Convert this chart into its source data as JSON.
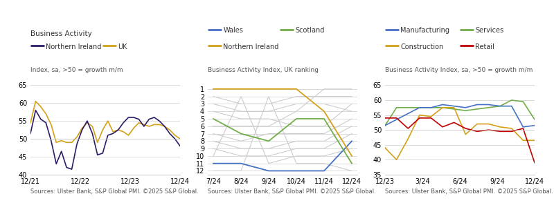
{
  "chart1": {
    "title": "Business Activity",
    "subtitle": "Index, sa, >50 = growth m/m",
    "ylim": [
      40,
      65
    ],
    "yticks": [
      40,
      45,
      50,
      55,
      60,
      65
    ],
    "xtick_labels": [
      "12/21",
      "12/22",
      "12/23",
      "12/24"
    ],
    "ni_color": "#2d1b69",
    "uk_color": "#d4a017",
    "ni_label": "Northern Ireland",
    "uk_label": "UK",
    "ni_data": [
      51.5,
      58.0,
      55.5,
      54.5,
      49.5,
      43.0,
      46.5,
      42.0,
      41.5,
      48.5,
      52.5,
      55.0,
      51.5,
      45.5,
      46.0,
      51.0,
      51.5,
      52.5,
      54.5,
      56.0,
      56.0,
      55.5,
      53.5,
      55.5,
      56.0,
      55.0,
      53.5,
      51.5,
      50.0,
      48.0
    ],
    "uk_data": [
      54.5,
      60.5,
      59.0,
      57.0,
      54.0,
      49.0,
      49.5,
      49.0,
      49.0,
      50.5,
      53.0,
      54.5,
      53.5,
      49.0,
      52.5,
      55.0,
      52.0,
      52.5,
      52.0,
      51.0,
      53.0,
      54.5,
      54.0,
      53.5,
      54.0,
      54.0,
      53.5,
      52.5,
      51.0,
      50.0
    ]
  },
  "chart2": {
    "title": "Business Activity Index, UK ranking",
    "yticks": [
      1,
      2,
      3,
      4,
      5,
      6,
      7,
      8,
      9,
      10,
      11,
      12
    ],
    "xtick_labels": [
      "7/24",
      "8/24",
      "9/24",
      "10/24",
      "11/24",
      "12/24"
    ],
    "wales_color": "#4472c4",
    "scotland_color": "#70ad47",
    "ni_color": "#d4a017",
    "wales_label": "Wales",
    "scotland_label": "Scotland",
    "ni_label": "Northern Ireland",
    "wales_data": [
      11,
      11,
      12,
      12,
      12,
      8
    ],
    "scotland_data": [
      5,
      7,
      8,
      5,
      5,
      11
    ],
    "ni_data": [
      1,
      1,
      1,
      1,
      4,
      10
    ],
    "grey_lines": [
      [
        2,
        3,
        3,
        2,
        2,
        2
      ],
      [
        3,
        4,
        4,
        3,
        3,
        4
      ],
      [
        4,
        5,
        5,
        6,
        6,
        3
      ],
      [
        6,
        6,
        6,
        4,
        1,
        1
      ],
      [
        7,
        8,
        7,
        7,
        7,
        5
      ],
      [
        8,
        9,
        9,
        8,
        8,
        6
      ],
      [
        9,
        10,
        10,
        9,
        9,
        7
      ],
      [
        10,
        2,
        11,
        10,
        10,
        9
      ],
      [
        12,
        12,
        2,
        11,
        11,
        12
      ]
    ]
  },
  "chart3": {
    "title": "Business Activity Index, sa, >50 = growth m/m",
    "ylim": [
      35,
      65
    ],
    "yticks": [
      35,
      40,
      45,
      50,
      55,
      60,
      65
    ],
    "xtick_labels": [
      "12/23",
      "3/24",
      "6/24",
      "9/24",
      "12/24"
    ],
    "manuf_color": "#4472c4",
    "services_color": "#70ad47",
    "construction_color": "#d4a017",
    "retail_color": "#c00000",
    "manuf_label": "Manufacturing",
    "services_label": "Services",
    "construction_label": "Construction",
    "retail_label": "Retail",
    "manuf_data": [
      51.5,
      53.5,
      55.5,
      57.5,
      57.5,
      58.5,
      58.0,
      57.5,
      58.5,
      58.5,
      58.0,
      58.0,
      51.0,
      51.5
    ],
    "services_data": [
      51.5,
      57.5,
      57.5,
      57.5,
      57.5,
      57.5,
      57.0,
      56.5,
      57.0,
      57.5,
      58.0,
      60.0,
      59.5,
      53.5
    ],
    "construction_data": [
      44.0,
      40.0,
      47.0,
      55.0,
      54.5,
      57.5,
      57.5,
      48.5,
      52.0,
      52.0,
      51.0,
      50.5,
      46.5,
      46.5
    ],
    "retail_data": [
      54.0,
      54.0,
      50.5,
      54.0,
      54.0,
      51.0,
      52.5,
      50.5,
      49.5,
      50.0,
      49.5,
      49.5,
      50.5,
      39.0
    ]
  },
  "source_text": "Sources: Ulster Bank, S&P Global PMI. ©2025 S&P Global.",
  "background_color": "#ffffff",
  "grid_color": "#cccccc",
  "title_fontsize": 7.5,
  "legend_fontsize": 7,
  "subtitle_fontsize": 6.5,
  "tick_fontsize": 7,
  "source_fontsize": 6.0
}
